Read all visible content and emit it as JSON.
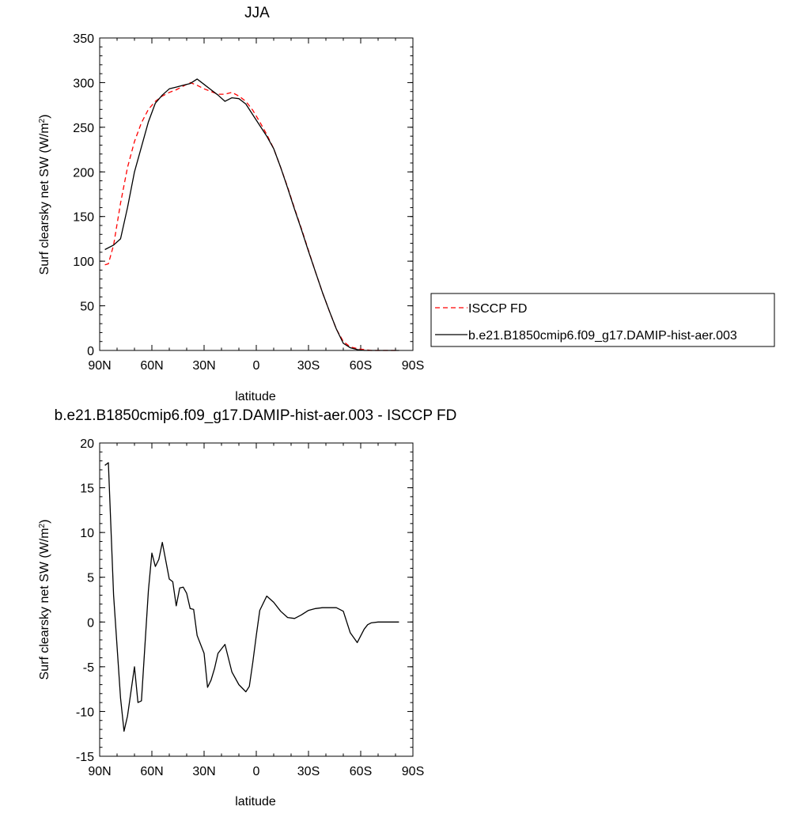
{
  "chart_data": [
    {
      "type": "line",
      "title": "JJA",
      "xlabel": "latitude",
      "ylabel": "Surf clearsky net SW (W/m",
      "ylabel_sup": "2",
      "ylabel_close": ")",
      "xlim": [
        90,
        -90
      ],
      "ylim": [
        0,
        350
      ],
      "yticks": [
        "0",
        "50",
        "100",
        "150",
        "200",
        "250",
        "300",
        "350"
      ],
      "xticks": [
        "90N",
        "60N",
        "30N",
        "0",
        "30S",
        "60S",
        "90S"
      ],
      "legend": {
        "placement": "right",
        "entries": [
          "ISCCP FD",
          "b.e21.B1850cmip6.f09_g17.DAMIP-hist-aer.003"
        ]
      },
      "series": [
        {
          "name": "ISCCP FD",
          "color": "#ff0000",
          "dash": "dashed",
          "x": [
            87,
            85,
            82,
            78,
            74,
            70,
            66,
            62,
            58,
            54,
            50,
            46,
            42,
            38,
            34,
            30,
            26,
            22,
            18,
            14,
            10,
            6,
            2,
            -2,
            -6,
            -10,
            -14,
            -18,
            -22,
            -26,
            -30,
            -34,
            -38,
            -42,
            -46,
            -50,
            -54,
            -58,
            -62,
            -66,
            -70,
            -74,
            -78,
            -82
          ],
          "y": [
            96,
            97,
            118,
            165,
            205,
            234,
            255,
            270,
            279,
            285,
            289,
            292,
            296,
            300,
            297,
            293,
            290,
            287,
            287,
            289,
            285,
            279,
            269,
            256,
            242,
            226,
            205,
            183,
            159,
            136,
            112,
            88,
            65,
            44,
            24,
            10,
            4,
            2,
            1,
            0,
            0,
            0,
            0,
            0
          ]
        },
        {
          "name": "b.e21.B1850cmip6.f09_g17.DAMIP-hist-aer.003",
          "color": "#000000",
          "dash": "solid",
          "x": [
            87,
            82,
            78,
            74,
            70,
            66,
            62,
            58,
            54,
            50,
            46,
            42,
            38,
            34,
            30,
            26,
            22,
            18,
            14,
            10,
            6,
            2,
            -2,
            -6,
            -10,
            -14,
            -18,
            -22,
            -26,
            -30,
            -34,
            -38,
            -42,
            -46,
            -50,
            -54,
            -58,
            -62,
            -66,
            -70,
            -74,
            -78,
            -82
          ],
          "y": [
            113,
            118,
            125,
            160,
            200,
            228,
            256,
            277,
            286,
            293,
            295,
            297,
            299,
            304,
            298,
            292,
            286,
            279,
            283,
            282,
            276,
            264,
            252,
            240,
            226,
            205,
            182,
            158,
            135,
            111,
            88,
            65,
            44,
            24,
            8,
            3,
            1,
            0,
            0,
            0,
            0,
            0,
            0
          ]
        }
      ]
    },
    {
      "type": "line",
      "title": "b.e21.B1850cmip6.f09_g17.DAMIP-hist-aer.003 - ISCCP FD",
      "xlabel": "latitude",
      "ylabel": "Surf clearsky net SW (W/m",
      "ylabel_sup": "2",
      "ylabel_close": ")",
      "xlim": [
        90,
        -90
      ],
      "ylim": [
        -15,
        20
      ],
      "yticks": [
        "-15",
        "-10",
        "-5",
        "0",
        "5",
        "10",
        "15",
        "20"
      ],
      "xticks": [
        "90N",
        "60N",
        "30N",
        "0",
        "30S",
        "60S",
        "90S"
      ],
      "series": [
        {
          "color": "#000000",
          "dash": "solid",
          "x": [
            87,
            85,
            82,
            78,
            76,
            74,
            70,
            68,
            66,
            62,
            60,
            58,
            56,
            54,
            50,
            48,
            46,
            44,
            42,
            40,
            38,
            36,
            34,
            30,
            28,
            26,
            24,
            22,
            18,
            14,
            10,
            6,
            4,
            2,
            0,
            -2,
            -6,
            -10,
            -14,
            -18,
            -22,
            -26,
            -30,
            -34,
            -38,
            -42,
            -46,
            -50,
            -54,
            -58,
            -62,
            -64,
            -66,
            -70,
            -74,
            -78,
            -82
          ],
          "y": [
            17.5,
            17.8,
            3.0,
            -8.5,
            -12.2,
            -10.5,
            -5.0,
            -9.0,
            -8.8,
            3.5,
            7.7,
            6.2,
            7.0,
            8.9,
            4.8,
            4.5,
            1.8,
            3.8,
            3.9,
            3.2,
            1.5,
            1.4,
            -1.5,
            -3.5,
            -7.3,
            -6.5,
            -5.2,
            -3.5,
            -2.5,
            -5.6,
            -7.0,
            -7.8,
            -7.2,
            -4.5,
            -1.5,
            1.3,
            2.9,
            2.2,
            1.2,
            0.5,
            0.4,
            0.8,
            1.3,
            1.5,
            1.6,
            1.6,
            1.6,
            1.2,
            -1.2,
            -2.3,
            -0.8,
            -0.3,
            -0.1,
            0.0,
            0.0,
            0.0,
            0.0
          ]
        }
      ]
    }
  ]
}
